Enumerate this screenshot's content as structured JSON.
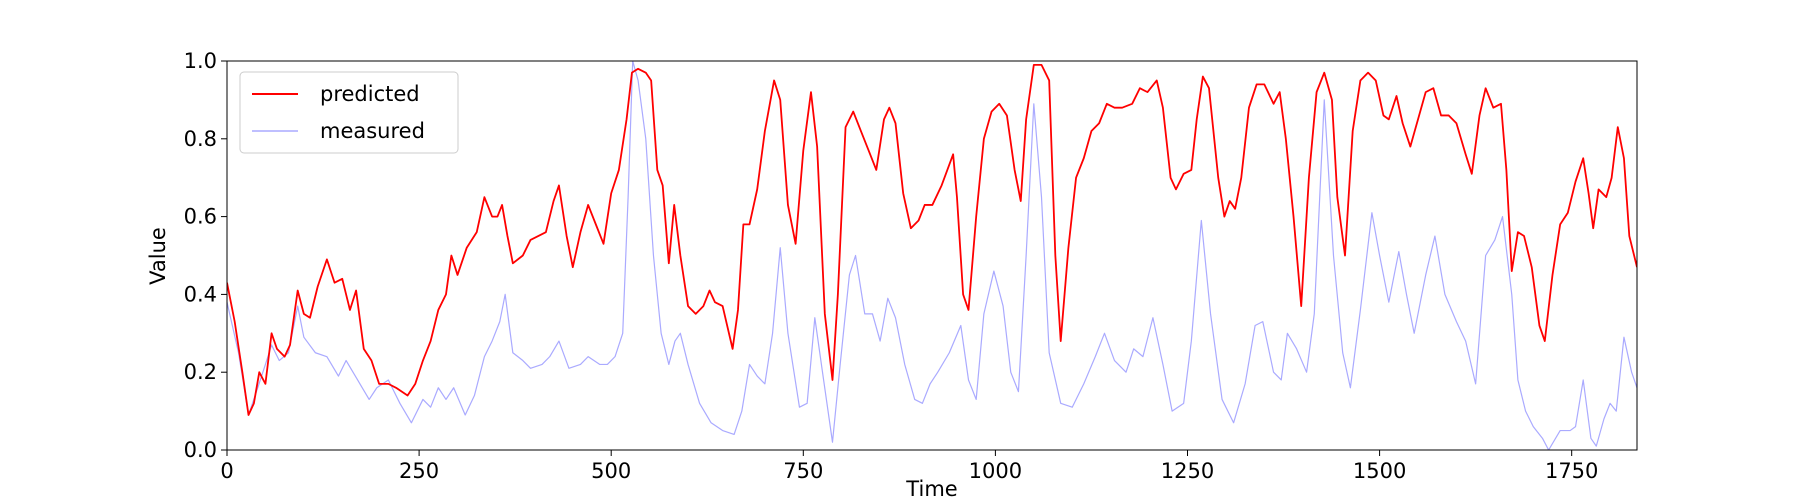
{
  "chart_data": {
    "type": "line",
    "x_label": "Time",
    "y_label": "Value",
    "xlim": [
      0,
      1835
    ],
    "ylim": [
      0,
      1
    ],
    "xticks": [
      0,
      250,
      500,
      750,
      1000,
      1250,
      1500,
      1750
    ],
    "yticks": [
      {
        "value": 0,
        "label": "0.0"
      },
      {
        "value": 0.2,
        "label": "0.2"
      },
      {
        "value": 0.4,
        "label": "0.4"
      },
      {
        "value": 0.6,
        "label": "0.6"
      },
      {
        "value": 0.8,
        "label": "0.8"
      },
      {
        "value": 1,
        "label": "1.0"
      }
    ],
    "legend": "upper-left",
    "series": [
      {
        "name": "predicted",
        "color": "#ff0000",
        "x": [
          0,
          10,
          20,
          28,
          35,
          42,
          50,
          58,
          65,
          75,
          82,
          92,
          100,
          108,
          118,
          130,
          140,
          150,
          160,
          168,
          178,
          188,
          198,
          210,
          220,
          235,
          245,
          255,
          265,
          275,
          285,
          292,
          300,
          312,
          325,
          335,
          345,
          352,
          358,
          365,
          372,
          385,
          395,
          405,
          415,
          425,
          432,
          442,
          450,
          460,
          470,
          480,
          490,
          500,
          510,
          520,
          527,
          535,
          545,
          552,
          560,
          567,
          575,
          582,
          590,
          600,
          610,
          620,
          628,
          635,
          645,
          658,
          665,
          672,
          680,
          690,
          700,
          712,
          720,
          730,
          740,
          750,
          760,
          768,
          778,
          788,
          795,
          805,
          815,
          825,
          835,
          845,
          855,
          862,
          870,
          880,
          890,
          900,
          908,
          918,
          930,
          945,
          950,
          958,
          965,
          975,
          985,
          995,
          1005,
          1015,
          1025,
          1033,
          1040,
          1050,
          1060,
          1070,
          1078,
          1085,
          1095,
          1105,
          1115,
          1125,
          1135,
          1145,
          1155,
          1165,
          1178,
          1188,
          1198,
          1210,
          1218,
          1228,
          1235,
          1245,
          1255,
          1262,
          1270,
          1278,
          1290,
          1298,
          1305,
          1312,
          1320,
          1330,
          1340,
          1350,
          1362,
          1370,
          1378,
          1388,
          1398,
          1408,
          1418,
          1428,
          1438,
          1445,
          1455,
          1465,
          1475,
          1485,
          1495,
          1505,
          1512,
          1522,
          1530,
          1540,
          1550,
          1560,
          1570,
          1580,
          1590,
          1600,
          1612,
          1620,
          1630,
          1638,
          1648,
          1658,
          1665,
          1672,
          1680,
          1688,
          1698,
          1708,
          1715,
          1725,
          1735,
          1745,
          1755,
          1765,
          1772,
          1778,
          1785,
          1795,
          1802,
          1810,
          1818,
          1825,
          1835
        ],
        "values": [
          0.43,
          0.33,
          0.2,
          0.09,
          0.12,
          0.2,
          0.17,
          0.3,
          0.26,
          0.24,
          0.27,
          0.41,
          0.35,
          0.34,
          0.42,
          0.49,
          0.43,
          0.44,
          0.36,
          0.41,
          0.26,
          0.23,
          0.17,
          0.17,
          0.16,
          0.14,
          0.17,
          0.23,
          0.28,
          0.36,
          0.4,
          0.5,
          0.45,
          0.52,
          0.56,
          0.65,
          0.6,
          0.6,
          0.63,
          0.55,
          0.48,
          0.5,
          0.54,
          0.55,
          0.56,
          0.64,
          0.68,
          0.55,
          0.47,
          0.56,
          0.63,
          0.58,
          0.53,
          0.66,
          0.72,
          0.85,
          0.97,
          0.98,
          0.97,
          0.95,
          0.72,
          0.68,
          0.48,
          0.63,
          0.5,
          0.37,
          0.35,
          0.37,
          0.41,
          0.38,
          0.37,
          0.26,
          0.36,
          0.58,
          0.58,
          0.67,
          0.82,
          0.95,
          0.9,
          0.63,
          0.53,
          0.77,
          0.92,
          0.78,
          0.35,
          0.18,
          0.4,
          0.83,
          0.87,
          0.82,
          0.77,
          0.72,
          0.85,
          0.88,
          0.84,
          0.66,
          0.57,
          0.59,
          0.63,
          0.63,
          0.68,
          0.76,
          0.65,
          0.4,
          0.36,
          0.6,
          0.8,
          0.87,
          0.89,
          0.86,
          0.72,
          0.64,
          0.85,
          0.99,
          0.99,
          0.95,
          0.5,
          0.28,
          0.52,
          0.7,
          0.75,
          0.82,
          0.84,
          0.89,
          0.88,
          0.88,
          0.89,
          0.93,
          0.92,
          0.95,
          0.88,
          0.7,
          0.67,
          0.71,
          0.72,
          0.85,
          0.96,
          0.93,
          0.7,
          0.6,
          0.64,
          0.62,
          0.7,
          0.88,
          0.94,
          0.94,
          0.89,
          0.92,
          0.8,
          0.6,
          0.37,
          0.7,
          0.92,
          0.97,
          0.9,
          0.65,
          0.5,
          0.82,
          0.95,
          0.97,
          0.95,
          0.86,
          0.85,
          0.91,
          0.84,
          0.78,
          0.85,
          0.92,
          0.93,
          0.86,
          0.86,
          0.84,
          0.76,
          0.71,
          0.86,
          0.93,
          0.88,
          0.89,
          0.72,
          0.46,
          0.56,
          0.55,
          0.47,
          0.32,
          0.28,
          0.45,
          0.58,
          0.61,
          0.69,
          0.75,
          0.66,
          0.57,
          0.67,
          0.65,
          0.7,
          0.83,
          0.75,
          0.55,
          0.47
        ]
      },
      {
        "name": "measured",
        "color": "#aaaaff",
        "x": [
          0,
          15,
          28,
          40,
          50,
          58,
          68,
          80,
          92,
          100,
          115,
          130,
          145,
          155,
          170,
          185,
          195,
          210,
          225,
          240,
          255,
          265,
          275,
          285,
          295,
          310,
          322,
          335,
          345,
          355,
          362,
          372,
          385,
          395,
          410,
          420,
          432,
          445,
          460,
          470,
          485,
          495,
          505,
          515,
          522,
          528,
          535,
          545,
          555,
          565,
          575,
          583,
          590,
          600,
          615,
          630,
          645,
          660,
          670,
          680,
          690,
          700,
          710,
          720,
          730,
          745,
          755,
          765,
          775,
          788,
          798,
          810,
          818,
          830,
          840,
          850,
          860,
          870,
          882,
          895,
          905,
          915,
          925,
          940,
          955,
          965,
          975,
          985,
          998,
          1010,
          1020,
          1030,
          1040,
          1050,
          1060,
          1070,
          1085,
          1100,
          1115,
          1130,
          1142,
          1155,
          1170,
          1180,
          1192,
          1205,
          1218,
          1230,
          1245,
          1255,
          1268,
          1280,
          1295,
          1310,
          1325,
          1338,
          1348,
          1362,
          1372,
          1380,
          1392,
          1405,
          1415,
          1428,
          1440,
          1452,
          1462,
          1475,
          1490,
          1500,
          1512,
          1525,
          1535,
          1545,
          1560,
          1572,
          1585,
          1600,
          1612,
          1625,
          1638,
          1650,
          1660,
          1672,
          1680,
          1690,
          1700,
          1712,
          1720,
          1735,
          1748,
          1755,
          1765,
          1775,
          1782,
          1792,
          1800,
          1808,
          1818,
          1828,
          1835
        ],
        "values": [
          0.38,
          0.25,
          0.09,
          0.16,
          0.22,
          0.27,
          0.23,
          0.25,
          0.37,
          0.29,
          0.25,
          0.24,
          0.19,
          0.23,
          0.18,
          0.13,
          0.16,
          0.18,
          0.12,
          0.07,
          0.13,
          0.11,
          0.16,
          0.13,
          0.16,
          0.09,
          0.14,
          0.24,
          0.28,
          0.33,
          0.4,
          0.25,
          0.23,
          0.21,
          0.22,
          0.24,
          0.28,
          0.21,
          0.22,
          0.24,
          0.22,
          0.22,
          0.24,
          0.3,
          0.65,
          1.0,
          0.95,
          0.8,
          0.5,
          0.3,
          0.22,
          0.28,
          0.3,
          0.22,
          0.12,
          0.07,
          0.05,
          0.04,
          0.1,
          0.22,
          0.19,
          0.17,
          0.3,
          0.52,
          0.3,
          0.11,
          0.12,
          0.34,
          0.2,
          0.02,
          0.22,
          0.45,
          0.5,
          0.35,
          0.35,
          0.28,
          0.39,
          0.34,
          0.22,
          0.13,
          0.12,
          0.17,
          0.2,
          0.25,
          0.32,
          0.18,
          0.13,
          0.35,
          0.46,
          0.37,
          0.2,
          0.15,
          0.5,
          0.89,
          0.65,
          0.25,
          0.12,
          0.11,
          0.17,
          0.24,
          0.3,
          0.23,
          0.2,
          0.26,
          0.24,
          0.34,
          0.22,
          0.1,
          0.12,
          0.28,
          0.59,
          0.35,
          0.13,
          0.07,
          0.17,
          0.32,
          0.33,
          0.2,
          0.18,
          0.3,
          0.26,
          0.2,
          0.35,
          0.9,
          0.5,
          0.25,
          0.16,
          0.36,
          0.61,
          0.5,
          0.38,
          0.51,
          0.4,
          0.3,
          0.45,
          0.55,
          0.4,
          0.33,
          0.28,
          0.17,
          0.5,
          0.54,
          0.6,
          0.4,
          0.18,
          0.1,
          0.06,
          0.03,
          0.0,
          0.05,
          0.05,
          0.06,
          0.18,
          0.03,
          0.01,
          0.08,
          0.12,
          0.1,
          0.29,
          0.2,
          0.16
        ]
      }
    ]
  }
}
